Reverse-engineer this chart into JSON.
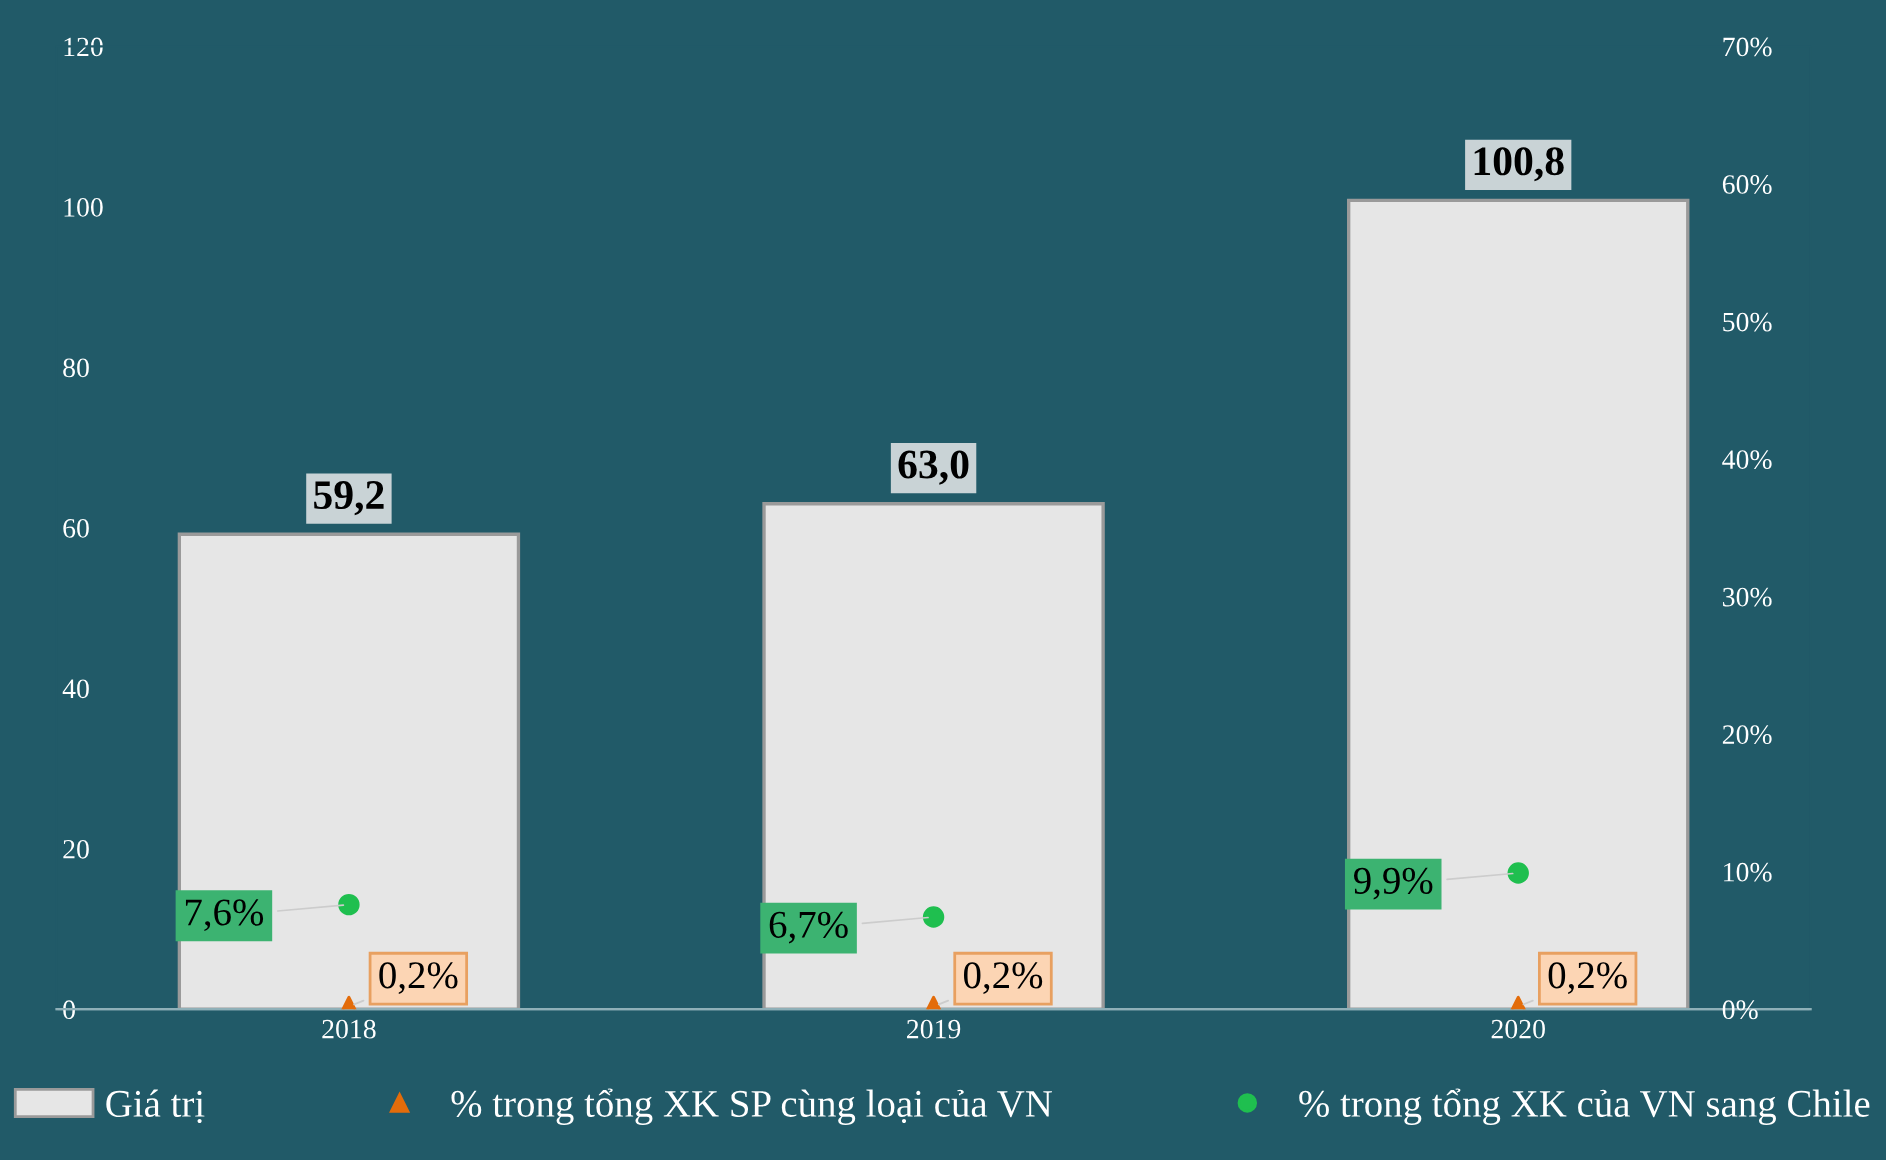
{
  "chart_data": {
    "type": "bar",
    "categories": [
      "2018",
      "2019",
      "2020"
    ],
    "series": [
      {
        "name": "Giá trị",
        "color": "#e6e6e6",
        "values": [
          59.2,
          63.0,
          100.8
        ],
        "value_labels": [
          "59,2",
          "63,0",
          "100,8"
        ]
      },
      {
        "name": "% trong tổng XK SP cùng loại của VN",
        "type": "scatter",
        "axis": "y2",
        "marker": "triangle",
        "color": "#e36c0a",
        "values": [
          0.2,
          0.2,
          0.2
        ],
        "value_labels": [
          "0,2%",
          "0,2%",
          "0,2%"
        ]
      },
      {
        "name": "% trong tổng XK của VN sang Chile",
        "type": "scatter",
        "axis": "y2",
        "marker": "circle",
        "color": "#1fbf4f",
        "values": [
          7.6,
          6.7,
          9.9
        ],
        "value_labels": [
          "7,6%",
          "6,7%",
          "9,9%"
        ]
      }
    ],
    "ylim": [
      0,
      120
    ],
    "yticks": [
      0,
      20,
      40,
      60,
      80,
      100,
      120
    ],
    "y2lim": [
      0,
      70
    ],
    "y2ticks": [
      {
        "value": 0,
        "label": "0%"
      },
      {
        "value": 10,
        "label": "10%"
      },
      {
        "value": 20,
        "label": "20%"
      },
      {
        "value": 30,
        "label": "30%"
      },
      {
        "value": 40,
        "label": "40%"
      },
      {
        "value": 50,
        "label": "50%"
      },
      {
        "value": 60,
        "label": "60%"
      },
      {
        "value": 70,
        "label": "70%"
      }
    ],
    "grid": false,
    "legend": "bottom"
  }
}
